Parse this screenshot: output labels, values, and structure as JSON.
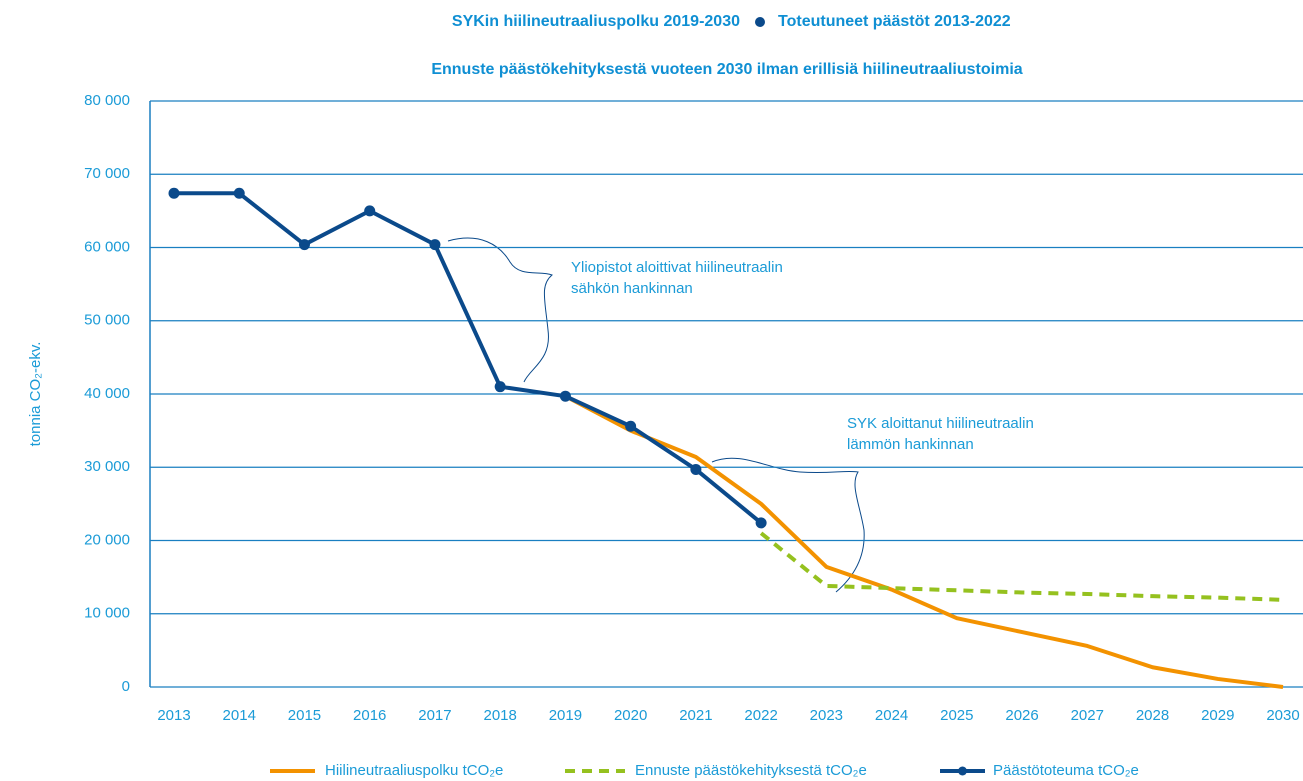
{
  "chart_data": {
    "type": "line",
    "title": "SYKin hiilineutraaliuspolku 2019-2030",
    "title2": "Toteutuneet päästöt 2013-2022",
    "subtitle": "Ennuste päästökehityksestä vuoteen 2030 ilman erillisiä hiilineutraaliustoimia",
    "ylabel": "tonnia CO₂-ekv.",
    "categories": [
      "2013",
      "2014",
      "2015",
      "2016",
      "2017",
      "2018",
      "2019",
      "2020",
      "2021",
      "2022",
      "2023",
      "2024",
      "2025",
      "2026",
      "2027",
      "2028",
      "2029",
      "2030"
    ],
    "ylim": [
      0,
      80000
    ],
    "yticks": [
      0,
      {
        "value": 10000,
        "label": "10 000"
      },
      {
        "value": 20000,
        "label": "20 000"
      },
      {
        "value": 30000,
        "label": "30 000"
      },
      {
        "value": 40000,
        "label": "40 000"
      },
      {
        "value": 50000,
        "label": "50 000"
      },
      {
        "value": 60000,
        "label": "60 000"
      },
      {
        "value": 70000,
        "label": "70 000"
      },
      {
        "value": 80000,
        "label": "80 000"
      }
    ],
    "grid": true,
    "series": [
      {
        "name": "Hiilineutraaliuspolku tCO₂e",
        "color": "#f39200",
        "dash": false,
        "marker": false,
        "values": [
          null,
          null,
          null,
          null,
          null,
          null,
          39700,
          35000,
          31400,
          25000,
          16400,
          13300,
          9400,
          7500,
          5600,
          2700,
          1100,
          0
        ]
      },
      {
        "name": "Ennuste päästökehityksestä tCO₂e",
        "color": "#95c11f",
        "dash": true,
        "marker": false,
        "values": [
          null,
          null,
          null,
          null,
          null,
          null,
          null,
          null,
          null,
          21000,
          13800,
          13500,
          13200,
          12900,
          12700,
          12400,
          12200,
          11900
        ]
      },
      {
        "name": "Päästötoteuma tCO₂e",
        "color": "#0b4a8b",
        "dash": false,
        "marker": true,
        "values": [
          67400,
          67400,
          60400,
          65000,
          60400,
          41000,
          39700,
          35600,
          29700,
          22400,
          null,
          null,
          null,
          null,
          null,
          null,
          null,
          null
        ]
      }
    ],
    "annotations": [
      {
        "lines": [
          "Yliopistot aloittivat hiilineutraalin",
          "sähkön hankinnan"
        ]
      },
      {
        "lines": [
          "SYK aloittanut hiilineutraalin",
          "lämmön hankinnan"
        ]
      }
    ]
  }
}
